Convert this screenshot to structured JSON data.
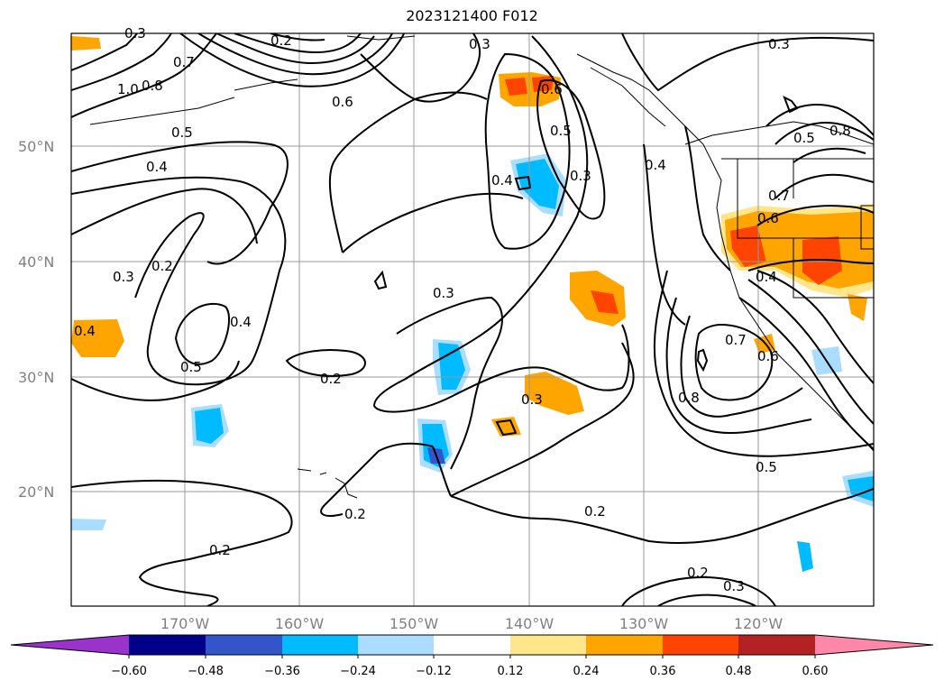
{
  "title": "2023121400 F012",
  "lat_labels": [
    "50°N",
    "40°N",
    "30°N",
    "20°N"
  ],
  "lon_labels": [
    "170°W",
    "160°W",
    "150°W",
    "140°W",
    "130°W",
    "120°W"
  ],
  "contour_labels": [
    "0.3",
    "0.3",
    "0.6",
    "0.7",
    "1.0",
    "0.8",
    "0.5",
    "0.4",
    "0.3",
    "0.2",
    "0.5",
    "0.4",
    "0.2",
    "0.3",
    "0.4",
    "0.5",
    "0.3",
    "0.6",
    "0.4",
    "0.3",
    "0.2",
    "0.2",
    "0.2",
    "0.2",
    "0.3",
    "0.2",
    "0.3",
    "0.5",
    "0.8",
    "0.7",
    "0.6",
    "0.6",
    "0.7",
    "0.4",
    "0.5",
    "0.8",
    "0.4"
  ],
  "colorbar": {
    "ticks": [
      "−0.60",
      "−0.48",
      "−0.36",
      "−0.24",
      "−0.12",
      "0.12",
      "0.24",
      "0.36",
      "0.48",
      "0.60"
    ],
    "colors": [
      "#9933cc",
      "#000088",
      "#3355cc",
      "#00bbff",
      "#aaddff",
      "#ffffff",
      "#ffe68a",
      "#ffa500",
      "#ff4400",
      "#b22222",
      "#ff88aa"
    ]
  }
}
